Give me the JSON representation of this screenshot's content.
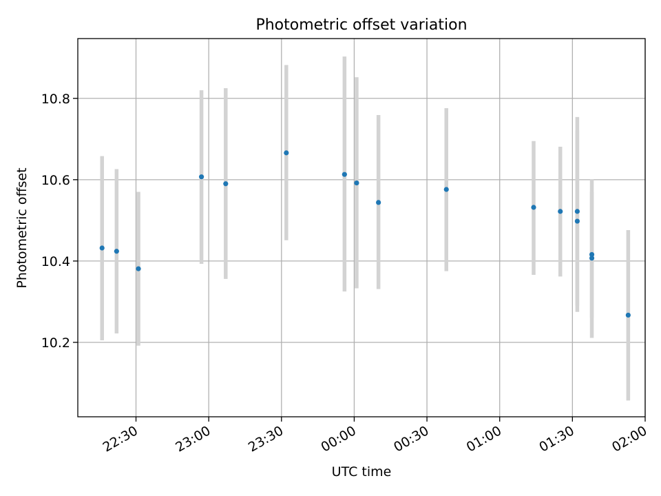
{
  "chart_data": {
    "type": "scatter",
    "title": "Photometric offset variation",
    "xlabel": "UTC time",
    "ylabel": "Photometric offset",
    "x_ticks": [
      "22:30",
      "23:00",
      "23:30",
      "00:00",
      "00:30",
      "01:00",
      "01:30",
      "02:00"
    ],
    "y_ticks": [
      "10.2",
      "10.4",
      "10.6",
      "10.8"
    ],
    "xlim": [
      "22:06",
      "02:00"
    ],
    "ylim": [
      10.017,
      10.947
    ],
    "grid": true,
    "colors": {
      "point": "#1f77b4",
      "errorbar": "#d3d3d3",
      "grid": "#b0b0b0"
    },
    "points": [
      {
        "x": "22:16",
        "y": 10.432,
        "err_low": 10.205,
        "err_high": 10.658
      },
      {
        "x": "22:22",
        "y": 10.424,
        "err_low": 10.222,
        "err_high": 10.626
      },
      {
        "x": "22:31",
        "y": 10.381,
        "err_low": 10.192,
        "err_high": 10.57
      },
      {
        "x": "22:57",
        "y": 10.607,
        "err_low": 10.393,
        "err_high": 10.82
      },
      {
        "x": "23:07",
        "y": 10.59,
        "err_low": 10.356,
        "err_high": 10.825
      },
      {
        "x": "23:32",
        "y": 10.666,
        "err_low": 10.451,
        "err_high": 10.882
      },
      {
        "x": "23:56",
        "y": 10.613,
        "err_low": 10.325,
        "err_high": 10.903
      },
      {
        "x": "00:01",
        "y": 10.592,
        "err_low": 10.333,
        "err_high": 10.852
      },
      {
        "x": "00:10",
        "y": 10.544,
        "err_low": 10.331,
        "err_high": 10.759
      },
      {
        "x": "00:38",
        "y": 10.576,
        "err_low": 10.375,
        "err_high": 10.776
      },
      {
        "x": "01:14",
        "y": 10.532,
        "err_low": 10.366,
        "err_high": 10.695
      },
      {
        "x": "01:25",
        "y": 10.522,
        "err_low": 10.362,
        "err_high": 10.681
      },
      {
        "x": "01:32",
        "y": 10.522,
        "err_low": 10.29,
        "err_high": 10.754
      },
      {
        "x": "01:32",
        "y": 10.498,
        "err_low": 10.275,
        "err_high": 10.722
      },
      {
        "x": "01:38",
        "y": 10.416,
        "err_low": 10.261,
        "err_high": 10.57
      },
      {
        "x": "01:38",
        "y": 10.407,
        "err_low": 10.211,
        "err_high": 10.601
      },
      {
        "x": "01:53",
        "y": 10.267,
        "err_low": 10.057,
        "err_high": 10.476
      }
    ]
  }
}
